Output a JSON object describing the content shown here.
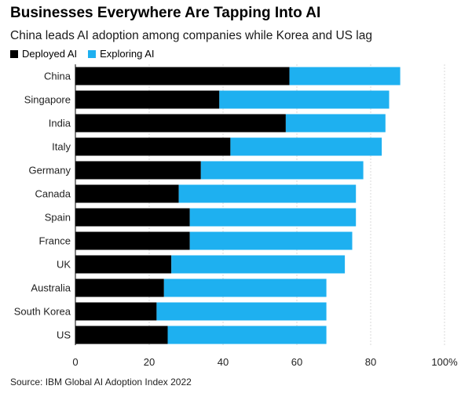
{
  "chart_data": {
    "type": "bar",
    "orientation": "horizontal",
    "stacked": true,
    "title": "Businesses Everywhere Are Tapping Into AI",
    "subtitle": "China leads AI adoption among companies while Korea and US lag",
    "categories": [
      "China",
      "Singapore",
      "India",
      "Italy",
      "Germany",
      "Canada",
      "Spain",
      "France",
      "UK",
      "Australia",
      "South Korea",
      "US"
    ],
    "series": [
      {
        "name": "Deployed AI",
        "color": "#000000",
        "values": [
          58,
          39,
          57,
          42,
          34,
          28,
          31,
          31,
          26,
          24,
          22,
          25
        ]
      },
      {
        "name": "Exploring AI",
        "color": "#1eb0f0",
        "values": [
          30,
          46,
          27,
          41,
          44,
          48,
          45,
          44,
          47,
          44,
          46,
          43
        ]
      }
    ],
    "xlim": [
      0,
      100
    ],
    "xticks": [
      0,
      20,
      40,
      60,
      80,
      100
    ],
    "xtick_labels": [
      "0",
      "20",
      "40",
      "60",
      "80",
      "100%"
    ],
    "grid": true,
    "legend_position": "top-left",
    "source": "Source: IBM Global AI Adoption Index 2022"
  }
}
